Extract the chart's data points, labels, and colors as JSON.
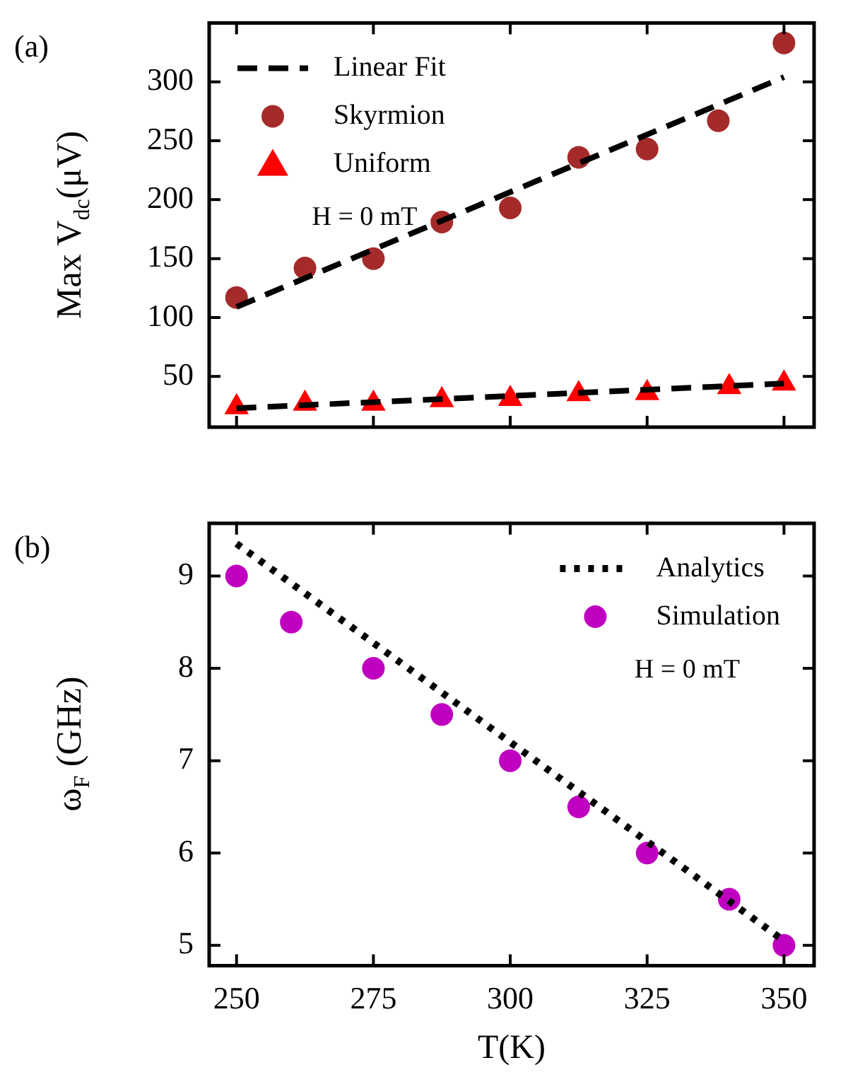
{
  "chart_data": [
    {
      "type": "scatter",
      "ylabel": "Max V$_{dc}$(μV)",
      "annotations": [
        "(a)",
        "H = 0 mT"
      ],
      "xlim": [
        245,
        355.5
      ],
      "xticks": [
        250,
        275,
        300,
        325,
        350
      ],
      "ylim": [
        7,
        350
      ],
      "yticks": [
        50,
        100,
        150,
        200,
        250,
        300
      ],
      "tick_labels": "y",
      "legend": "top left",
      "series": [
        {
          "name": "Linear Fit",
          "type": "line",
          "color": "#000000",
          "line_style": "dashed",
          "marker": "none",
          "x": [
            250,
            350
          ],
          "values": [
            109,
            304
          ]
        },
        {
          "name": "Skyrmion",
          "type": "scatter",
          "color": "#a52a2a",
          "marker": "circle",
          "x": [
            250,
            262.5,
            275,
            287.5,
            300,
            312.5,
            325,
            338,
            350
          ],
          "values": [
            117,
            142,
            150,
            181,
            193,
            236,
            243,
            267,
            333
          ]
        },
        {
          "name": "Uniform",
          "type": "scatter",
          "color": "#ff0000",
          "marker": "triangle",
          "x": [
            250,
            262.5,
            275,
            287.5,
            300,
            312.5,
            325,
            340,
            350
          ],
          "values": [
            24,
            27,
            27,
            30,
            31,
            35,
            36,
            41,
            44
          ]
        },
        {
          "type": "line",
          "color": "#000000",
          "line_style": "dashed",
          "marker": "none",
          "x": [
            250,
            350
          ],
          "values": [
            23,
            44
          ]
        }
      ]
    },
    {
      "type": "scatter",
      "xlabel": "T(K)",
      "ylabel": "ω$_{F}$ (GHz)",
      "annotations": [
        "(b)",
        "H = 0 mT"
      ],
      "xlim": [
        245,
        355.5
      ],
      "xticks": [
        250,
        275,
        300,
        325,
        350
      ],
      "ylim": [
        4.78,
        9.57
      ],
      "yticks": [
        5,
        6,
        7,
        8,
        9
      ],
      "legend": "top right",
      "series": [
        {
          "name": "Analytics",
          "type": "line",
          "color": "#000000",
          "line_style": "dotted",
          "marker": "none",
          "x": [
            250,
            350
          ],
          "values": [
            9.35,
            5.05
          ]
        },
        {
          "name": "Simulation",
          "type": "scatter",
          "color": "#c000c0",
          "marker": "circle",
          "x": [
            250,
            260,
            275,
            287.5,
            300,
            312.5,
            325,
            340,
            350
          ],
          "values": [
            9,
            8.5,
            8,
            7.5,
            7,
            6.5,
            6,
            5.5,
            5
          ]
        }
      ]
    }
  ]
}
